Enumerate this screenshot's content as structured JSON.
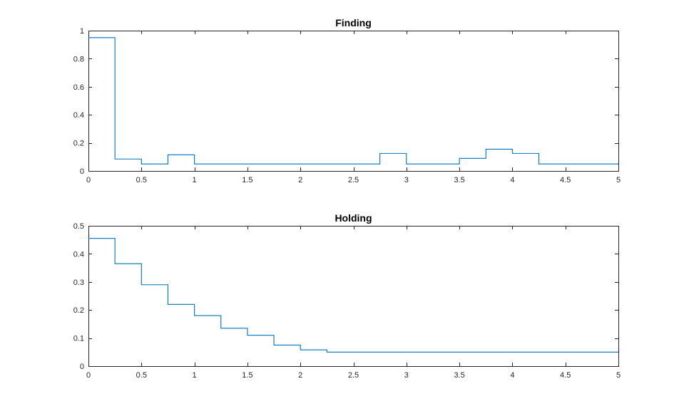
{
  "colors": {
    "series": "#0072BD",
    "axis": "#262626",
    "background": "#ffffff"
  },
  "chart_data": [
    {
      "type": "line",
      "style": "stairs",
      "title": "Finding",
      "xlabel": "",
      "ylabel": "",
      "xlim": [
        0,
        5
      ],
      "ylim": [
        0,
        1
      ],
      "grid": false,
      "x_ticks": [
        0,
        0.5,
        1,
        1.5,
        2,
        2.5,
        3,
        3.5,
        4,
        4.5,
        5
      ],
      "x_tick_labels": [
        "0",
        "0.5",
        "1",
        "1.5",
        "2",
        "2.5",
        "3",
        "3.5",
        "4",
        "4.5",
        "5"
      ],
      "y_ticks": [
        0,
        0.2,
        0.4,
        0.6,
        0.8,
        1
      ],
      "y_tick_labels": [
        "0",
        "0.2",
        "0.4",
        "0.6",
        "0.8",
        "1"
      ],
      "series": [
        {
          "x": [
            0,
            0.25,
            0.5,
            0.75,
            1,
            1.25,
            1.5,
            1.75,
            2,
            2.25,
            2.5,
            2.75,
            3,
            3.25,
            3.5,
            3.75,
            4,
            4.25,
            4.5,
            4.75
          ],
          "values": [
            0.95,
            0.085,
            0.05,
            0.115,
            0.05,
            0.05,
            0.05,
            0.05,
            0.05,
            0.05,
            0.05,
            0.125,
            0.05,
            0.05,
            0.09,
            0.155,
            0.125,
            0.05,
            0.05,
            0.05
          ]
        }
      ]
    },
    {
      "type": "line",
      "style": "stairs",
      "title": "Holding",
      "xlabel": "",
      "ylabel": "",
      "xlim": [
        0,
        5
      ],
      "ylim": [
        0,
        0.5
      ],
      "grid": false,
      "x_ticks": [
        0,
        0.5,
        1,
        1.5,
        2,
        2.5,
        3,
        3.5,
        4,
        4.5,
        5
      ],
      "x_tick_labels": [
        "0",
        "0.5",
        "1",
        "1.5",
        "2",
        "2.5",
        "3",
        "3.5",
        "4",
        "4.5",
        "5"
      ],
      "y_ticks": [
        0,
        0.1,
        0.2,
        0.3,
        0.4,
        0.5
      ],
      "y_tick_labels": [
        "0",
        "0.1",
        "0.2",
        "0.3",
        "0.4",
        "0.5"
      ],
      "series": [
        {
          "x": [
            0,
            0.25,
            0.5,
            0.75,
            1,
            1.25,
            1.5,
            1.75,
            2,
            2.25,
            2.5,
            2.75,
            3,
            3.25,
            3.5,
            3.75,
            4,
            4.25,
            4.5,
            4.75
          ],
          "values": [
            0.455,
            0.365,
            0.29,
            0.22,
            0.18,
            0.135,
            0.11,
            0.075,
            0.058,
            0.05,
            0.05,
            0.05,
            0.05,
            0.05,
            0.05,
            0.05,
            0.05,
            0.05,
            0.05,
            0.05
          ]
        }
      ]
    }
  ]
}
